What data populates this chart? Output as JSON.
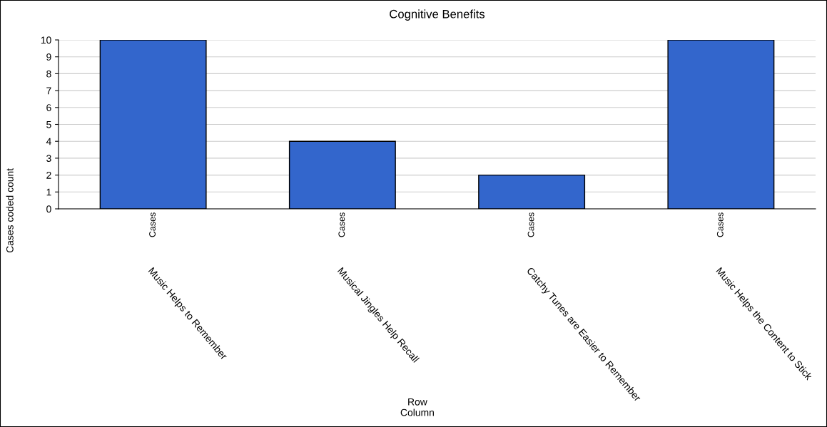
{
  "chart_data": {
    "type": "bar",
    "title": "Cognitive Benefits",
    "categories": [
      "Music Helps to Remember",
      "Musical Jingles Help Recall",
      "Catchy Tunes are Easier to Remember",
      "Music Helps the Content to Stick"
    ],
    "values": [
      10,
      4,
      2,
      10
    ],
    "color": "#3366cc",
    "xlabel": "Row\nColumn",
    "ylabel": "Cases coded count",
    "annotations": [
      "Cases",
      "Cases",
      "Cases",
      "Cases"
    ],
    "ylim": [
      0,
      10
    ],
    "yticks": [
      0,
      1,
      2,
      3,
      4,
      5,
      6,
      7,
      8,
      9,
      10
    ],
    "grid": "y",
    "legend": false
  }
}
